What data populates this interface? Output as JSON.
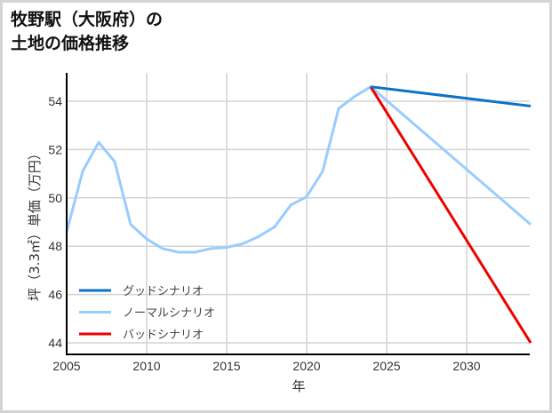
{
  "title": {
    "line1": "牧野駅（大阪府）の",
    "line2": "土地の価格推移"
  },
  "chart_data": {
    "type": "line",
    "title": "牧野駅（大阪府）の土地の価格推移",
    "xlabel": "年",
    "ylabel": "坪（3.3㎡）単価（万円）",
    "xlim": [
      2005,
      2034
    ],
    "ylim": [
      43.5,
      55.2
    ],
    "x_ticks": [
      2005,
      2010,
      2015,
      2020,
      2025,
      2030
    ],
    "y_ticks": [
      44,
      46,
      48,
      50,
      52,
      54
    ],
    "grid": true,
    "legend_position": "lower left",
    "series": [
      {
        "name": "グッドシナリオ",
        "color": "#0a72c8",
        "x": [
          2024,
          2034
        ],
        "values": [
          54.6,
          53.8
        ]
      },
      {
        "name": "ノーマルシナリオ",
        "color": "#99ccff",
        "x": [
          2005,
          2006,
          2007,
          2008,
          2009,
          2010,
          2011,
          2012,
          2013,
          2014,
          2015,
          2016,
          2017,
          2018,
          2019,
          2020,
          2021,
          2022,
          2023,
          2024,
          2034
        ],
        "values": [
          48.6,
          51.1,
          52.3,
          51.5,
          48.9,
          48.3,
          47.9,
          47.75,
          47.75,
          47.9,
          47.95,
          48.1,
          48.4,
          48.8,
          49.7,
          50.05,
          51.1,
          53.7,
          54.2,
          54.6,
          48.9
        ]
      },
      {
        "name": "バッドシナリオ",
        "color": "#ee0000",
        "x": [
          2024,
          2034
        ],
        "values": [
          54.6,
          44.0
        ]
      }
    ]
  }
}
